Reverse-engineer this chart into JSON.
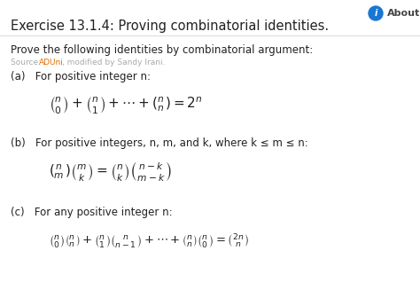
{
  "title": "Exercise 13.1.4: Proving combinatorial identities.",
  "about_text": "About",
  "about_bg": "#1976d2",
  "intro_text": "Prove the following identities by combinatorial argument:",
  "source_text": "Source: ADUni, modified by Sandy Irani.",
  "part_a_label": "(a)   For positive integer n:",
  "part_b_label": "(b)   For positive integers, n, m, and k, where k ≤ m ≤ n:",
  "part_c_label": "(c)   For any positive integer n:",
  "bg_color": "#ffffff",
  "text_color": "#212121",
  "source_color": "#aaaaaa",
  "title_fontsize": 10.5,
  "body_fontsize": 8.5,
  "source_fontsize": 6.5,
  "formula_fontsize_a": 11,
  "formula_fontsize_b": 11,
  "formula_fontsize_c": 9.5,
  "about_color": "#444444",
  "sep_color": "#dddddd"
}
